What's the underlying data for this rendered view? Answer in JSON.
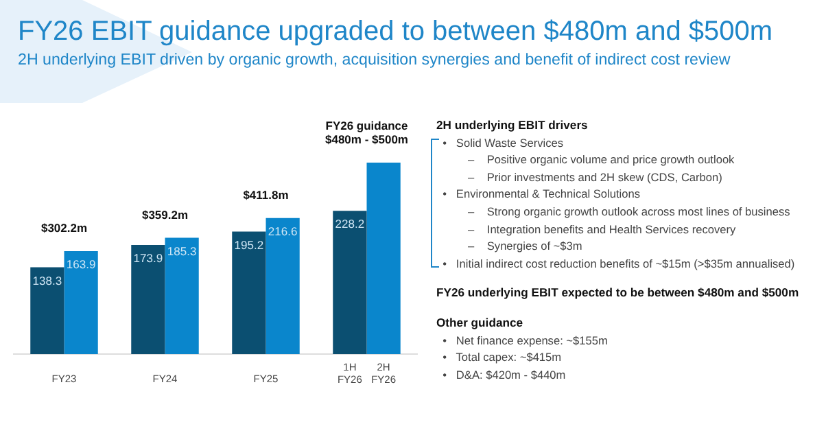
{
  "chart_data": {
    "type": "bar",
    "title": "FY26 EBIT guidance upgraded to between $480m and $500m",
    "subtitle": "2H underlying EBIT driven by organic growth, acquisition synergies and benefit of indirect cost review",
    "categories": [
      "FY23",
      "FY24",
      "FY25",
      "FY26"
    ],
    "series": [
      {
        "name": "1H",
        "color": "#0b4f71",
        "values": [
          138.3,
          173.9,
          195.2,
          228.2
        ],
        "value_labels": [
          "138.3",
          "173.9",
          "195.2",
          "228.2"
        ]
      },
      {
        "name": "2H",
        "color": "#0a86cc",
        "values": [
          163.9,
          185.3,
          216.6,
          305
        ],
        "value_labels": [
          "163.9",
          "185.3",
          "216.6",
          null
        ]
      }
    ],
    "totals": [
      "$302.2m",
      "$359.2m",
      "$411.8m",
      "FY26 guidance\n$480m - $500m"
    ],
    "legend": false,
    "grid": false,
    "annotations": [
      "2H underlying EBIT drivers",
      "  •   Solid Waste Services",
      "          –    Positive organic volume and price growth outlook",
      "          –    Prior investments and 2H skew (CDS, Carbon)",
      "  •   Environmental & Technical Solutions",
      "          –    Strong organic growth outlook across most lines of business",
      "          –    Integration benefits and Health Services recovery",
      "          –    Synergies of ~$3m",
      "  •   Initial indirect cost reduction benefits of ~$15m (>$35m annualised)",
      "FY26 underlying EBIT expected to be between $480m and $500m",
      "Other guidance",
      "  •   Net finance expense: ~$155m",
      "  •   Total capex: ~$415m",
      "  •   D&A: $420m - $440m"
    ]
  }
}
